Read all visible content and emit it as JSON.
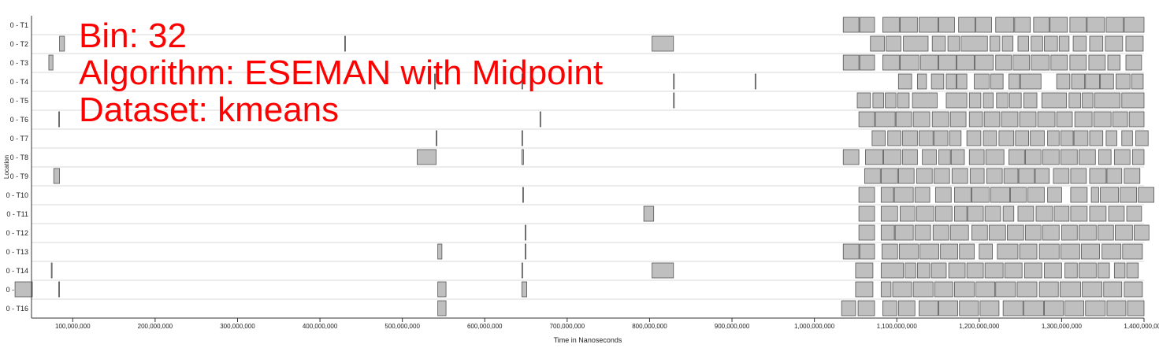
{
  "overlay": {
    "bin_line": "Bin: 32",
    "algorithm_line": "Algorithm: ESEMAN with Midpoint",
    "dataset_line": "Dataset: kmeans"
  },
  "chart_data": {
    "type": "timeline",
    "xlabel": "Time in Nanoseconds",
    "ylabel": "Location",
    "xlim": [
      50000000,
      1400000000
    ],
    "x_ticks": [
      100000000,
      200000000,
      300000000,
      400000000,
      500000000,
      600000000,
      700000000,
      800000000,
      900000000,
      1000000000,
      1100000000,
      1200000000,
      1300000000,
      1400000000
    ],
    "x_tick_labels": [
      "100,000,000",
      "200,000,000",
      "300,000,000",
      "400,000,000",
      "500,000,000",
      "600,000,000",
      "700,000,000",
      "800,000,000",
      "900,000,000",
      "1,000,000,000",
      "1,100,000,000",
      "1,200,000,000",
      "1,300,000,000",
      "1,400,000,000"
    ],
    "grid": true,
    "colors": {
      "bar_fill": "#bfbfbf",
      "bar_stroke": "#555555",
      "row_line": "#d9d9d9",
      "overlay_text": "#ff0000"
    },
    "rows": [
      {
        "label": "0 - T1",
        "intervals": [
          [
            1035,
            1054
          ],
          [
            1055,
            1073
          ],
          [
            1083,
            1103
          ],
          [
            1104,
            1125
          ],
          [
            1127,
            1150
          ],
          [
            1151,
            1170
          ],
          [
            1175,
            1195
          ],
          [
            1196,
            1215
          ],
          [
            1220,
            1242
          ],
          [
            1243,
            1262
          ],
          [
            1266,
            1285
          ],
          [
            1286,
            1307
          ],
          [
            1310,
            1330
          ],
          [
            1331,
            1352
          ],
          [
            1354,
            1375
          ],
          [
            1376,
            1400
          ]
        ]
      },
      {
        "label": "0 - T2",
        "intervals": [
          [
            84,
            90
          ],
          [
            430,
            431
          ],
          [
            803,
            829
          ],
          [
            1068,
            1085
          ],
          [
            1087,
            1105
          ],
          [
            1108,
            1138
          ],
          [
            1143,
            1159
          ],
          [
            1162,
            1176
          ],
          [
            1178,
            1210
          ],
          [
            1213,
            1225
          ],
          [
            1228,
            1241
          ],
          [
            1247,
            1260
          ],
          [
            1263,
            1277
          ],
          [
            1279,
            1295
          ],
          [
            1297,
            1309
          ],
          [
            1314,
            1330
          ],
          [
            1334,
            1350
          ],
          [
            1353,
            1374
          ],
          [
            1378,
            1399
          ]
        ]
      },
      {
        "label": "0 - T3",
        "intervals": [
          [
            71,
            76
          ],
          [
            1035,
            1054
          ],
          [
            1055,
            1073
          ],
          [
            1083,
            1103
          ],
          [
            1104,
            1127
          ],
          [
            1129,
            1150
          ],
          [
            1151,
            1172
          ],
          [
            1173,
            1194
          ],
          [
            1195,
            1217
          ],
          [
            1220,
            1239
          ],
          [
            1241,
            1261
          ],
          [
            1263,
            1285
          ],
          [
            1287,
            1307
          ],
          [
            1310,
            1330
          ],
          [
            1333,
            1353
          ],
          [
            1356,
            1371
          ],
          [
            1378,
            1397
          ]
        ]
      },
      {
        "label": "0 - T4",
        "intervals": [
          [
            539,
            540
          ],
          [
            645,
            646
          ],
          [
            829,
            830
          ],
          [
            928,
            929
          ],
          [
            1102,
            1118
          ],
          [
            1125,
            1136
          ],
          [
            1142,
            1157
          ],
          [
            1160,
            1172
          ],
          [
            1173,
            1185
          ],
          [
            1194,
            1212
          ],
          [
            1214,
            1229
          ],
          [
            1236,
            1249
          ],
          [
            1250,
            1275
          ],
          [
            1294,
            1310
          ],
          [
            1312,
            1328
          ],
          [
            1329,
            1346
          ],
          [
            1347,
            1363
          ],
          [
            1366,
            1383
          ],
          [
            1385,
            1399
          ]
        ]
      },
      {
        "label": "0 - T5",
        "intervals": [
          [
            829,
            830
          ],
          [
            1052,
            1068
          ],
          [
            1071,
            1084
          ],
          [
            1086,
            1099
          ],
          [
            1101,
            1115
          ],
          [
            1119,
            1149
          ],
          [
            1160,
            1185
          ],
          [
            1188,
            1202
          ],
          [
            1205,
            1217
          ],
          [
            1221,
            1235
          ],
          [
            1237,
            1251
          ],
          [
            1254,
            1270
          ],
          [
            1276,
            1306
          ],
          [
            1309,
            1323
          ],
          [
            1325,
            1338
          ],
          [
            1340,
            1371
          ],
          [
            1373,
            1400
          ]
        ]
      },
      {
        "label": "0 - T6",
        "intervals": [
          [
            83,
            84
          ],
          [
            667,
            668
          ],
          [
            1054,
            1073
          ],
          [
            1074,
            1098
          ],
          [
            1099,
            1118
          ],
          [
            1120,
            1140
          ],
          [
            1143,
            1163
          ],
          [
            1165,
            1184
          ],
          [
            1188,
            1204
          ],
          [
            1206,
            1225
          ],
          [
            1227,
            1247
          ],
          [
            1249,
            1269
          ],
          [
            1271,
            1292
          ],
          [
            1294,
            1313
          ],
          [
            1316,
            1337
          ],
          [
            1339,
            1360
          ],
          [
            1362,
            1380
          ],
          [
            1382,
            1400
          ]
        ]
      },
      {
        "label": "0 - T7",
        "intervals": [
          [
            541,
            542
          ],
          [
            645,
            646
          ],
          [
            1070,
            1086
          ],
          [
            1089,
            1105
          ],
          [
            1107,
            1125
          ],
          [
            1127,
            1144
          ],
          [
            1145,
            1162
          ],
          [
            1164,
            1178
          ],
          [
            1185,
            1202
          ],
          [
            1205,
            1221
          ],
          [
            1224,
            1242
          ],
          [
            1244,
            1260
          ],
          [
            1262,
            1279
          ],
          [
            1283,
            1297
          ],
          [
            1299,
            1314
          ],
          [
            1315,
            1332
          ],
          [
            1334,
            1350
          ],
          [
            1354,
            1367
          ],
          [
            1373,
            1386
          ],
          [
            1390,
            1405
          ]
        ]
      },
      {
        "label": "0 - T8",
        "intervals": [
          [
            518,
            541
          ],
          [
            645,
            647
          ],
          [
            1035,
            1054
          ],
          [
            1062,
            1083
          ],
          [
            1084,
            1105
          ],
          [
            1107,
            1125
          ],
          [
            1131,
            1148
          ],
          [
            1151,
            1165
          ],
          [
            1166,
            1182
          ],
          [
            1188,
            1206
          ],
          [
            1208,
            1230
          ],
          [
            1236,
            1255
          ],
          [
            1256,
            1275
          ],
          [
            1277,
            1297
          ],
          [
            1299,
            1319
          ],
          [
            1321,
            1341
          ],
          [
            1345,
            1360
          ],
          [
            1364,
            1383
          ],
          [
            1386,
            1400
          ]
        ]
      },
      {
        "label": "0 - T9",
        "intervals": [
          [
            77,
            84
          ],
          [
            1061,
            1080
          ],
          [
            1081,
            1101
          ],
          [
            1102,
            1121
          ],
          [
            1124,
            1143
          ],
          [
            1145,
            1164
          ],
          [
            1167,
            1186
          ],
          [
            1189,
            1206
          ],
          [
            1209,
            1228
          ],
          [
            1230,
            1247
          ],
          [
            1248,
            1267
          ],
          [
            1268,
            1285
          ],
          [
            1290,
            1309
          ],
          [
            1311,
            1330
          ],
          [
            1334,
            1354
          ],
          [
            1355,
            1373
          ],
          [
            1376,
            1395
          ]
        ]
      },
      {
        "label": "0 - T10",
        "intervals": [
          [
            646,
            647
          ],
          [
            1054,
            1073
          ],
          [
            1081,
            1096
          ],
          [
            1097,
            1120
          ],
          [
            1122,
            1140
          ],
          [
            1147,
            1166
          ],
          [
            1170,
            1190
          ],
          [
            1191,
            1212
          ],
          [
            1214,
            1237
          ],
          [
            1238,
            1257
          ],
          [
            1259,
            1279
          ],
          [
            1283,
            1300
          ],
          [
            1311,
            1331
          ],
          [
            1336,
            1345
          ],
          [
            1347,
            1369
          ],
          [
            1371,
            1391
          ],
          [
            1393,
            1412
          ]
        ]
      },
      {
        "label": "0 - T11",
        "intervals": [
          [
            793,
            805
          ],
          [
            1054,
            1073
          ],
          [
            1081,
            1101
          ],
          [
            1104,
            1122
          ],
          [
            1124,
            1145
          ],
          [
            1147,
            1167
          ],
          [
            1170,
            1185
          ],
          [
            1186,
            1205
          ],
          [
            1207,
            1226
          ],
          [
            1229,
            1242
          ],
          [
            1247,
            1266
          ],
          [
            1269,
            1289
          ],
          [
            1291,
            1309
          ],
          [
            1311,
            1331
          ],
          [
            1334,
            1354
          ],
          [
            1357,
            1376
          ],
          [
            1379,
            1397
          ]
        ]
      },
      {
        "label": "0 - T12",
        "intervals": [
          [
            649,
            650
          ],
          [
            1054,
            1073
          ],
          [
            1081,
            1097
          ],
          [
            1098,
            1120
          ],
          [
            1122,
            1141
          ],
          [
            1144,
            1163
          ],
          [
            1165,
            1187
          ],
          [
            1191,
            1210
          ],
          [
            1212,
            1232
          ],
          [
            1234,
            1254
          ],
          [
            1256,
            1275
          ],
          [
            1277,
            1297
          ],
          [
            1300,
            1319
          ],
          [
            1321,
            1342
          ],
          [
            1344,
            1363
          ],
          [
            1365,
            1386
          ],
          [
            1388,
            1406
          ]
        ]
      },
      {
        "label": "0 - T13",
        "intervals": [
          [
            543,
            548
          ],
          [
            649,
            650
          ],
          [
            1035,
            1054
          ],
          [
            1055,
            1073
          ],
          [
            1082,
            1101
          ],
          [
            1103,
            1126
          ],
          [
            1128,
            1151
          ],
          [
            1153,
            1174
          ],
          [
            1176,
            1194
          ],
          [
            1200,
            1216
          ],
          [
            1222,
            1247
          ],
          [
            1249,
            1270
          ],
          [
            1273,
            1297
          ],
          [
            1299,
            1322
          ],
          [
            1324,
            1346
          ],
          [
            1349,
            1372
          ],
          [
            1374,
            1398
          ]
        ]
      },
      {
        "label": "0 - T14",
        "intervals": [
          [
            74,
            75
          ],
          [
            645,
            646
          ],
          [
            803,
            829
          ],
          [
            1050,
            1071
          ],
          [
            1081,
            1108
          ],
          [
            1110,
            1123
          ],
          [
            1125,
            1140
          ],
          [
            1142,
            1160
          ],
          [
            1163,
            1183
          ],
          [
            1185,
            1205
          ],
          [
            1207,
            1229
          ],
          [
            1231,
            1252
          ],
          [
            1255,
            1276
          ],
          [
            1279,
            1300
          ],
          [
            1304,
            1319
          ],
          [
            1321,
            1342
          ],
          [
            1344,
            1358
          ],
          [
            1364,
            1377
          ],
          [
            1379,
            1393
          ]
        ]
      },
      {
        "label": "0 - T15",
        "intervals": [
          [
            30,
            51
          ],
          [
            83,
            84
          ],
          [
            543,
            553
          ],
          [
            645,
            651
          ],
          [
            1050,
            1071
          ],
          [
            1081,
            1093
          ],
          [
            1095,
            1118
          ],
          [
            1120,
            1144
          ],
          [
            1146,
            1168
          ],
          [
            1170,
            1194
          ],
          [
            1196,
            1219
          ],
          [
            1220,
            1244
          ],
          [
            1246,
            1270
          ],
          [
            1273,
            1296
          ],
          [
            1298,
            1323
          ],
          [
            1325,
            1349
          ],
          [
            1351,
            1373
          ],
          [
            1376,
            1398
          ]
        ]
      },
      {
        "label": "0 - T16",
        "intervals": [
          [
            543,
            553
          ],
          [
            1033,
            1050
          ],
          [
            1053,
            1073
          ],
          [
            1083,
            1100
          ],
          [
            1102,
            1122
          ],
          [
            1127,
            1150
          ],
          [
            1151,
            1174
          ],
          [
            1176,
            1199
          ],
          [
            1201,
            1224
          ],
          [
            1229,
            1253
          ],
          [
            1254,
            1278
          ],
          [
            1279,
            1302
          ],
          [
            1304,
            1327
          ],
          [
            1329,
            1353
          ],
          [
            1355,
            1378
          ],
          [
            1380,
            1400
          ]
        ]
      }
    ],
    "interval_units": "millions of nanoseconds"
  }
}
